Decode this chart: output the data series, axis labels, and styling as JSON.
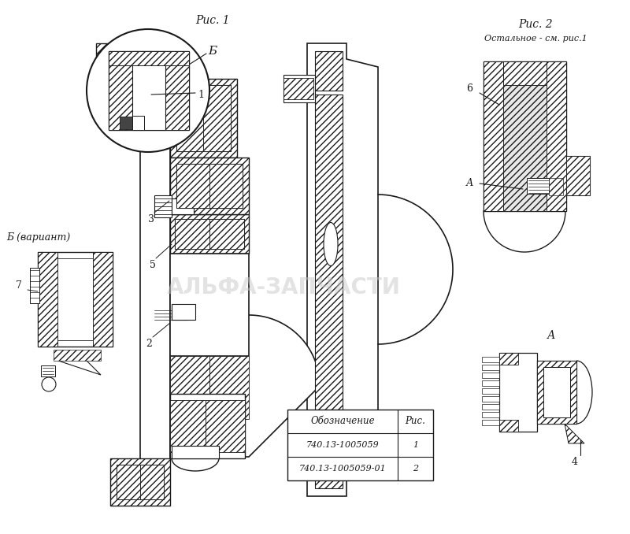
{
  "bg_color": "#ffffff",
  "fig_bg": "#ffffff",
  "ris1_label": "Рис. 1",
  "ris2_label": "Рис. 2",
  "ris2_sub": "Остальное - см. рис.1",
  "B_label": "Б",
  "B_var_label": "Б (вариант)",
  "A_label": "А",
  "table_header_col1": "Обозначение",
  "table_header_col2": "Рис.",
  "table_row1_col1": "740.13-1005059",
  "table_row1_col2": "1",
  "table_row2_col1": "740.13-1005059-01",
  "table_row2_col2": "2",
  "watermark": "АЛЬФА-ЗАПЧАСТИ",
  "lc": "#1a1a1a",
  "hc": "#444444",
  "wm_color": "#c8c8c8",
  "wm_alpha": 0.5
}
